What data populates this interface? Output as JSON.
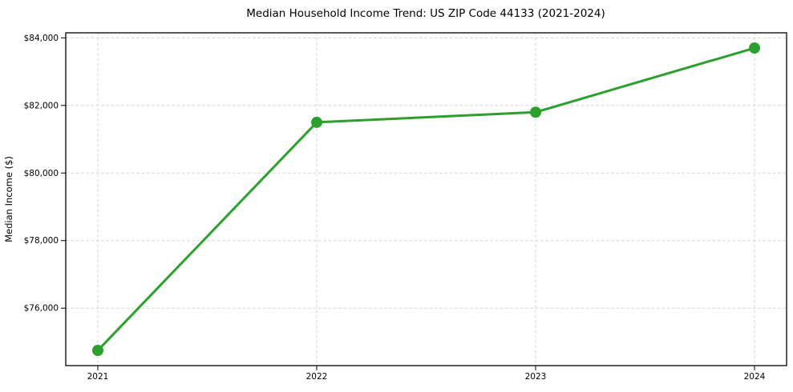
{
  "chart_data": {
    "type": "line",
    "title": "Median Household Income Trend: US ZIP Code 44133 (2021-2024)",
    "xlabel": "",
    "ylabel": "Median Income ($)",
    "categories": [
      "2021",
      "2022",
      "2023",
      "2024"
    ],
    "series": [
      {
        "name": "Median Household Income",
        "values": [
          74750,
          81500,
          81800,
          83700
        ]
      }
    ],
    "y_ticks": [
      76000,
      78000,
      80000,
      82000,
      84000
    ],
    "y_tick_labels": [
      "$76,000",
      "$78,000",
      "$80,000",
      "$82,000",
      "$84,000"
    ],
    "ylim": [
      74300,
      84150
    ],
    "grid": "dashed, both horizontal and vertical",
    "legend_position": "none",
    "colors": {
      "line": "#2ca02c",
      "marker": "#2ca02c",
      "grid": "#d4d4d4",
      "frame": "#000000",
      "text": "#000000",
      "background": "#ffffff"
    }
  }
}
